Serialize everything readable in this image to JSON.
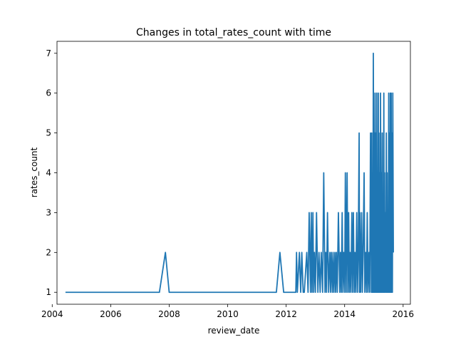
{
  "chart_data": {
    "type": "line",
    "title": "Changes in total_rates_count with time",
    "xlabel": "review_date",
    "ylabel": "rates_count",
    "x_ticks": [
      "2004",
      "2006",
      "2008",
      "2010",
      "2012",
      "2014",
      "2016"
    ],
    "y_ticks": [
      "1",
      "2",
      "3",
      "4",
      "5",
      "6",
      "7"
    ],
    "xlim": [
      "2004-03-01",
      "2016-04-01"
    ],
    "ylim": [
      0.7,
      7.3
    ],
    "grid": false,
    "legend": "none",
    "series_color": "#1f77b4",
    "series": [
      {
        "x": [
          "2004-06-15",
          "2007-09-01",
          "2007-11-15",
          "2008-01-01",
          "2011-09-01",
          "2011-10-15",
          "2011-12-01",
          "2012-05-01",
          "2012-05-10",
          "2012-05-20",
          "2012-06-15",
          "2012-07-01",
          "2012-07-15",
          "2012-08-01",
          "2012-08-15",
          "2012-09-15",
          "2012-10-01",
          "2012-10-15",
          "2012-11-01",
          "2012-11-10",
          "2012-11-20",
          "2012-12-01",
          "2012-12-10",
          "2012-12-20",
          "2013-01-01",
          "2013-01-15",
          "2013-02-01",
          "2013-02-15",
          "2013-03-01",
          "2013-03-15",
          "2013-04-01",
          "2013-04-15",
          "2013-05-01",
          "2013-05-10",
          "2013-05-20",
          "2013-06-01",
          "2013-06-15",
          "2013-07-01",
          "2013-07-10",
          "2013-07-20",
          "2013-08-01",
          "2013-08-10",
          "2013-08-20",
          "2013-09-01",
          "2013-09-10",
          "2013-09-20",
          "2013-10-01",
          "2013-10-15",
          "2013-11-01",
          "2013-11-10",
          "2013-11-20",
          "2013-12-01",
          "2013-12-10",
          "2013-12-20",
          "2014-01-01",
          "2014-01-10",
          "2014-01-20",
          "2014-02-01",
          "2014-02-10",
          "2014-02-20",
          "2014-03-01",
          "2014-03-10",
          "2014-03-20",
          "2014-04-01",
          "2014-04-10",
          "2014-04-20",
          "2014-05-01",
          "2014-05-10",
          "2014-05-20",
          "2014-06-01",
          "2014-06-10",
          "2014-06-20",
          "2014-07-01",
          "2014-07-05",
          "2014-07-10",
          "2014-07-20",
          "2014-08-01",
          "2014-08-10",
          "2014-08-20",
          "2014-09-01",
          "2014-09-10",
          "2014-09-20",
          "2014-10-01",
          "2014-10-10",
          "2014-10-20",
          "2014-11-01",
          "2014-11-10",
          "2014-11-20",
          "2014-12-01",
          "2014-12-05",
          "2014-12-10",
          "2014-12-15",
          "2014-12-20",
          "2014-12-25",
          "2015-01-01",
          "2015-01-05",
          "2015-01-10",
          "2015-01-15",
          "2015-01-20",
          "2015-01-25",
          "2015-02-01",
          "2015-02-05",
          "2015-02-10",
          "2015-02-15",
          "2015-02-20",
          "2015-02-25",
          "2015-03-01",
          "2015-03-05",
          "2015-03-10",
          "2015-03-15",
          "2015-03-20",
          "2015-03-25",
          "2015-04-01",
          "2015-04-05",
          "2015-04-10",
          "2015-04-15",
          "2015-04-20",
          "2015-04-25",
          "2015-05-01",
          "2015-05-05",
          "2015-05-10",
          "2015-05-15",
          "2015-05-20",
          "2015-05-25",
          "2015-06-01",
          "2015-06-05",
          "2015-06-10",
          "2015-06-15",
          "2015-06-20",
          "2015-06-25",
          "2015-07-01",
          "2015-07-05",
          "2015-07-10",
          "2015-07-15",
          "2015-07-20",
          "2015-07-25",
          "2015-08-01",
          "2015-08-05",
          "2015-08-10",
          "2015-08-15",
          "2015-08-20",
          "2015-08-25",
          "2015-09-01"
        ],
        "y": [
          1,
          1,
          2,
          1,
          1,
          2,
          1,
          1,
          2,
          1,
          2,
          1,
          2,
          1,
          1,
          2,
          1,
          3,
          1,
          3,
          1,
          3,
          1,
          2,
          1,
          3,
          1,
          2,
          1,
          2,
          1,
          4,
          1,
          2,
          1,
          3,
          1,
          2,
          1,
          2,
          1,
          2,
          1,
          2,
          1,
          2,
          1,
          3,
          1,
          2,
          1,
          3,
          1,
          2,
          1,
          4,
          1,
          4,
          1,
          3,
          1,
          2,
          1,
          3,
          1,
          3,
          1,
          2,
          1,
          3,
          1,
          2,
          5,
          1,
          3,
          1,
          3,
          1,
          2,
          4,
          1,
          2,
          1,
          3,
          1,
          2,
          1,
          5,
          1,
          5,
          1,
          4,
          1,
          7,
          1,
          5,
          1,
          6,
          1,
          5,
          1,
          6,
          1,
          4,
          1,
          6,
          1,
          5,
          1,
          4,
          1,
          6,
          1,
          4,
          1,
          5,
          1,
          3,
          1,
          6,
          1,
          4,
          1,
          3,
          1,
          5,
          1,
          4,
          1,
          3,
          1,
          6,
          1,
          5,
          1,
          6,
          1,
          6,
          1,
          5,
          1,
          6,
          2
        ]
      }
    ]
  }
}
